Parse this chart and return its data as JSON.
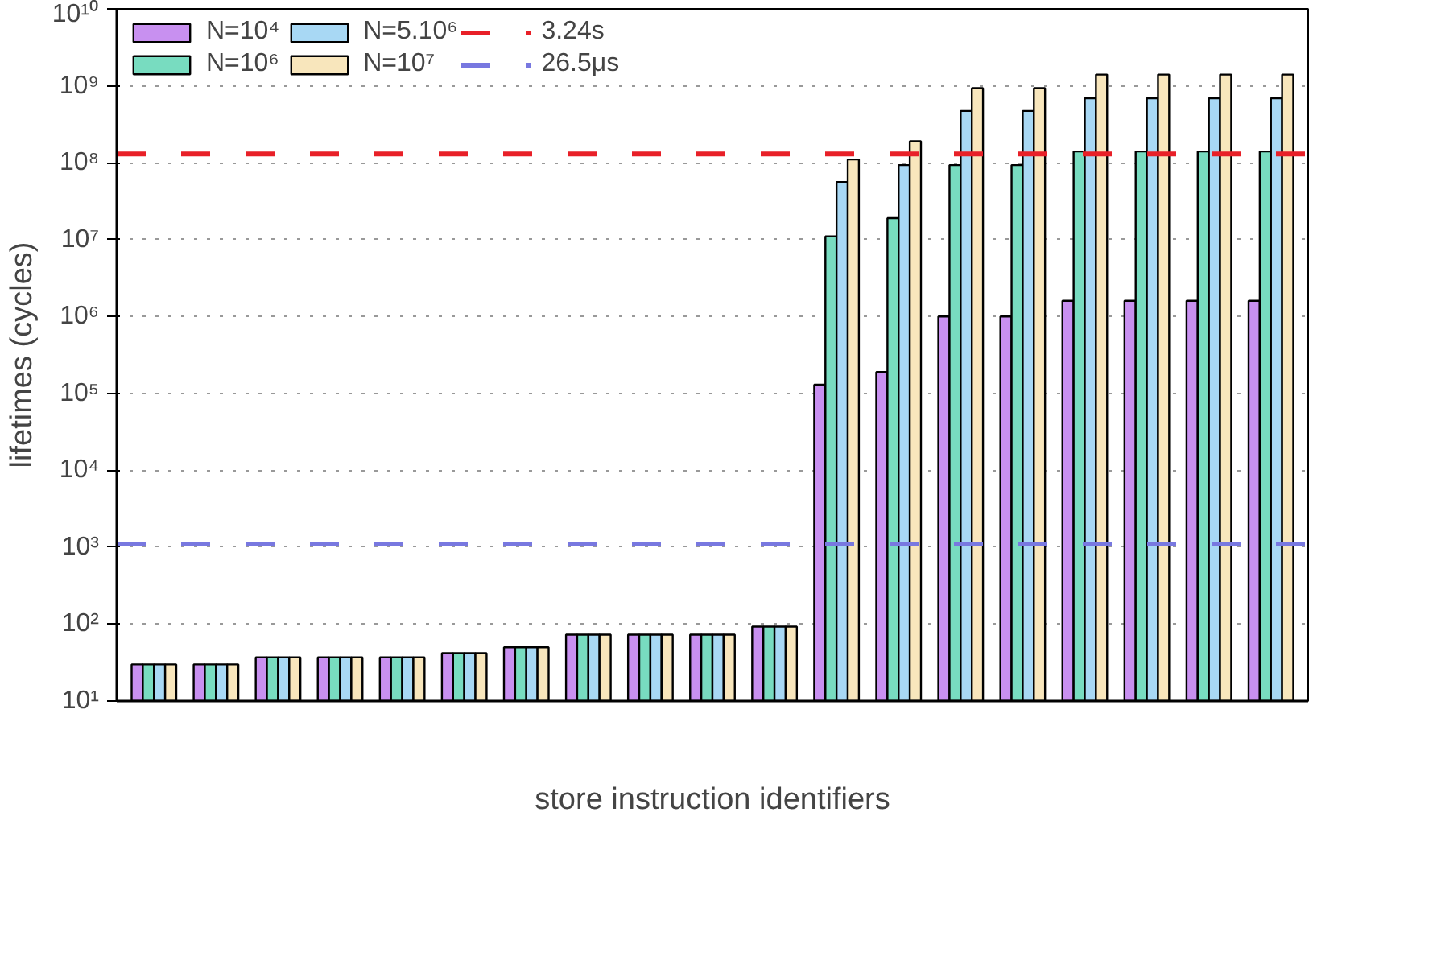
{
  "chart_data": {
    "type": "bar",
    "xlabel": "store instruction identifiers",
    "ylabel": "lifetimes (cycles)",
    "categories": [
      null,
      null,
      null,
      null,
      null,
      null,
      null,
      null,
      null,
      null,
      null,
      null,
      null,
      null,
      null,
      null,
      null,
      null,
      null
    ],
    "series": [
      {
        "name": "N=10⁴",
        "color": "#c890f0",
        "values": [
          30,
          30,
          37,
          37,
          37,
          42,
          50,
          73,
          73,
          73,
          93,
          130000.0,
          190000.0,
          1000000.0,
          1000000.0,
          1600000.0,
          1600000.0,
          1600000.0,
          1600000.0
        ]
      },
      {
        "name": "N=10⁶",
        "color": "#78dcc0",
        "values": [
          30,
          30,
          37,
          37,
          37,
          42,
          50,
          73,
          73,
          73,
          93,
          11000000.0,
          19000000.0,
          93000000.0,
          93000000.0,
          140000000.0,
          140000000.0,
          140000000.0,
          140000000.0
        ]
      },
      {
        "name": "N=5.10⁶",
        "color": "#a8d8f4",
        "values": [
          30,
          30,
          37,
          37,
          37,
          42,
          50,
          73,
          73,
          73,
          93,
          56000000.0,
          93000000.0,
          470000000.0,
          470000000.0,
          690000000.0,
          690000000.0,
          690000000.0,
          690000000.0
        ]
      },
      {
        "name": "N=10⁷",
        "color": "#f8e6bc",
        "values": [
          30,
          30,
          37,
          37,
          37,
          42,
          50,
          73,
          73,
          73,
          93,
          110000000.0,
          190000000.0,
          930000000.0,
          930000000.0,
          1400000000.0,
          1400000000.0,
          1400000000.0,
          1400000000.0
        ]
      }
    ],
    "log": true,
    "ylim": [
      10,
      10000000000.0
    ],
    "yticks": [
      {
        "value": 10,
        "label": "10¹"
      },
      {
        "value": 100,
        "label": "10²"
      },
      {
        "value": 1000,
        "label": "10³"
      },
      {
        "value": 10000,
        "label": "10⁴"
      },
      {
        "value": 100000,
        "label": "10⁵"
      },
      {
        "value": 1000000,
        "label": "10⁶"
      },
      {
        "value": 10000000,
        "label": "10⁷"
      },
      {
        "value": 100000000,
        "label": "10⁸"
      },
      {
        "value": 1000000000,
        "label": "10⁹"
      },
      {
        "value": 10000000000,
        "label": "10¹⁰"
      }
    ],
    "ref_lines": [
      {
        "axis": "y",
        "value": 130000000.0,
        "label": "3.24s",
        "color": "#e82028",
        "line_style": "dashed"
      },
      {
        "axis": "y",
        "value": 1100.0,
        "label": "26.5μs",
        "color": "#7878e0",
        "line_style": "dashed"
      }
    ],
    "grid": "y",
    "legend": "top left"
  }
}
